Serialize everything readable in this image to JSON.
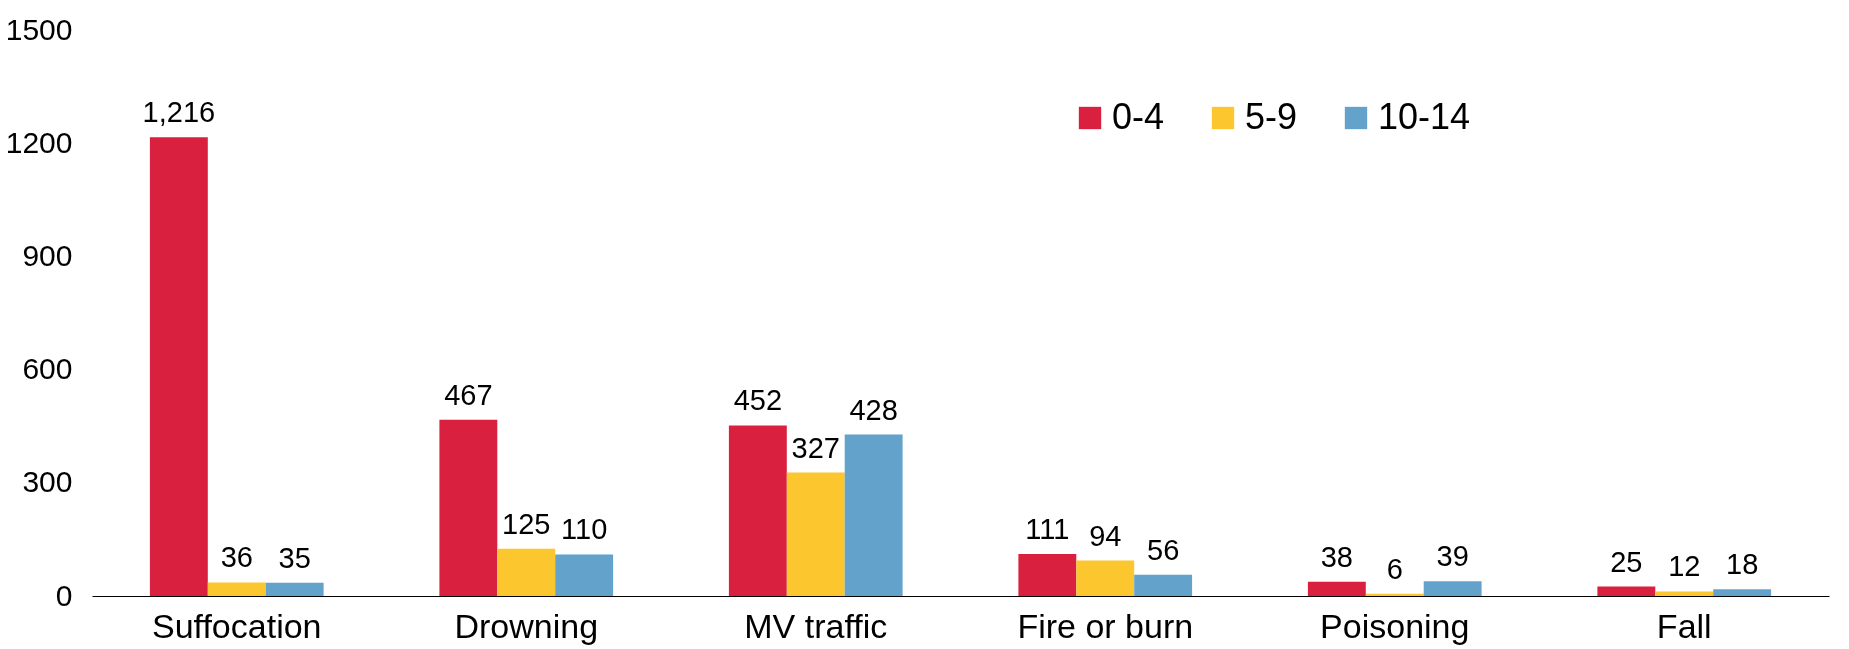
{
  "chart_data": {
    "type": "bar",
    "categories": [
      "Suffocation",
      "Drowning",
      "MV traffic",
      "Fire or burn",
      "Poisoning",
      "Fall"
    ],
    "series": [
      {
        "name": "0-4",
        "color": "#d9203f",
        "values": [
          1216,
          467,
          452,
          111,
          38,
          25
        ],
        "value_labels": [
          "1,216",
          "467",
          "452",
          "111",
          "38",
          "25"
        ]
      },
      {
        "name": "5-9",
        "color": "#fcc62e",
        "values": [
          36,
          125,
          327,
          94,
          6,
          12
        ]
      },
      {
        "name": "10-14",
        "color": "#63a3cb",
        "values": [
          35,
          110,
          428,
          56,
          39,
          18
        ]
      }
    ],
    "ylim": [
      0,
      1500
    ],
    "yticks": [
      0,
      300,
      600,
      900,
      1200,
      1500
    ],
    "data_labels": true,
    "grid": false,
    "legend": "top right"
  }
}
